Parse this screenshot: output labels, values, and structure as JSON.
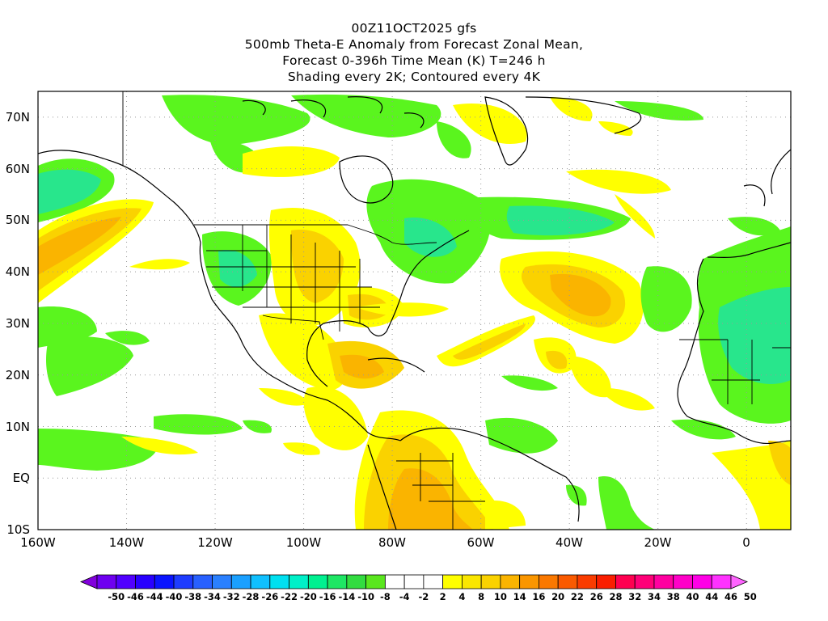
{
  "title": {
    "line1": "00Z11OCT2025 gfs",
    "line2": "500mb Theta-E Anomaly from Forecast Zonal Mean,",
    "line3": "Forecast 0-396h Time Mean (K) T=246 h",
    "line4": "Shading every 2K; Contoured every 4K"
  },
  "map": {
    "lon_range": [
      -160,
      10
    ],
    "lat_range": [
      -10,
      75
    ],
    "lon_ticks": [
      "160W",
      "140W",
      "120W",
      "100W",
      "80W",
      "60W",
      "40W",
      "20W",
      "0"
    ],
    "lat_ticks": [
      "10S",
      "EQ",
      "10N",
      "20N",
      "30N",
      "40N",
      "50N",
      "60N",
      "70N"
    ]
  },
  "colorbar": {
    "labels": [
      "-50",
      "-46",
      "-44",
      "-40",
      "-38",
      "-34",
      "-32",
      "-28",
      "-26",
      "-22",
      "-20",
      "-16",
      "-14",
      "-10",
      "-8",
      "-4",
      "-2",
      "2",
      "4",
      "8",
      "10",
      "14",
      "16",
      "20",
      "22",
      "26",
      "28",
      "32",
      "34",
      "38",
      "40",
      "44",
      "46",
      "50"
    ],
    "colors": [
      "#8200dc",
      "#6e00f0",
      "#5000ff",
      "#2800ff",
      "#0a14ff",
      "#1e3cff",
      "#2860ff",
      "#2a80ff",
      "#1aa0ff",
      "#10c0ff",
      "#00e0f0",
      "#00f0c8",
      "#00f090",
      "#1ee664",
      "#32dc40",
      "#5ae61e",
      "#ffffff",
      "#ffffff",
      "#ffffff",
      "#ffff00",
      "#fae600",
      "#fad200",
      "#fab400",
      "#fa9600",
      "#fa7800",
      "#fa5a00",
      "#fa3c00",
      "#fa1e00",
      "#ff0050",
      "#ff0078",
      "#ff00a0",
      "#ff00c8",
      "#ff00e6",
      "#ff32ff",
      "#ff64ff"
    ]
  },
  "colors": {
    "green": "#5af51e",
    "teal": "#28e68c",
    "yellow": "#ffff00",
    "gold": "#fad200",
    "orange": "#fab400"
  }
}
